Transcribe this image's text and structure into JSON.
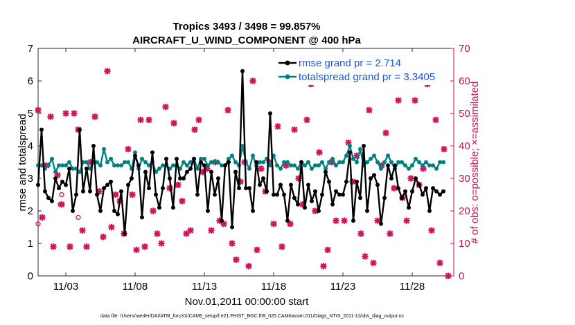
{
  "chart_data": {
    "type": "line",
    "title": "Tropics 3493 / 3498 = 99.857%",
    "subtitle": "AIRCRAFT_U_WIND_COMPONENT @ 400 hPa",
    "xlabel": "Nov.01,2011 00:00:00 start",
    "ylabel_left": "rmse and totalspread",
    "ylabel_right": "# of obs: o=possible; ×=assimilated",
    "footer": "data file: /Users/raeder/DAI/ATM_forcXX/CAM6_setup/f.e21.FHIST_BGC.f09_025.CAM6assim.011/Diags_NTrS_2011-11/obs_diag_output.nc",
    "xlim": [
      1,
      31
    ],
    "ylim_left": [
      0,
      7
    ],
    "ylim_right": [
      0,
      70
    ],
    "xticks": [
      3,
      8,
      13,
      18,
      23,
      28
    ],
    "xtick_labels": [
      "11/03",
      "11/08",
      "11/13",
      "11/18",
      "11/23",
      "11/28"
    ],
    "yticks_left": [
      "0",
      "1",
      "2",
      "3",
      "4",
      "5",
      "6",
      "7"
    ],
    "yticks_right": [
      "0",
      "10",
      "20",
      "30",
      "40",
      "50",
      "60",
      "70"
    ],
    "legend": [
      {
        "name": "rmse grand pr = 2.714",
        "color": "#000000"
      },
      {
        "name": "totalspread grand pr = 3.3405",
        "color": "#008080"
      }
    ],
    "legend_position": "top-right",
    "colors": {
      "rmse": "#000000",
      "spread": "#008080",
      "obs": "#d4145a"
    },
    "rmse_x": [
      1.0,
      1.25,
      1.5,
      1.75,
      2.0,
      2.25,
      2.5,
      2.75,
      3.0,
      3.25,
      3.5,
      3.75,
      4.0,
      4.25,
      4.5,
      4.75,
      5.0,
      5.25,
      5.5,
      5.75,
      6.0,
      6.25,
      6.5,
      6.75,
      7.0,
      7.25,
      7.5,
      7.75,
      8.0,
      8.25,
      8.5,
      8.75,
      9.0,
      9.25,
      9.5,
      9.75,
      10.0,
      10.25,
      10.5,
      10.75,
      11.0,
      11.25,
      11.5,
      11.75,
      12.0,
      12.25,
      12.5,
      12.75,
      13.0,
      13.25,
      13.5,
      13.75,
      14.0,
      14.25,
      14.5,
      14.75,
      15.0,
      15.25,
      15.5,
      15.75,
      16.0,
      16.25,
      16.5,
      16.75,
      17.0,
      17.25,
      17.5,
      17.75,
      18.0,
      18.25,
      18.5,
      18.75,
      19.0,
      19.25,
      19.5,
      19.75,
      20.0,
      20.25,
      20.5,
      20.75,
      21.0,
      21.25,
      21.5,
      21.75,
      22.0,
      22.25,
      22.5,
      22.75,
      23.0,
      23.25,
      23.5,
      23.75,
      24.0,
      24.25,
      24.5,
      24.75,
      25.0,
      25.25,
      25.5,
      25.75,
      26.0,
      26.25,
      26.5,
      26.75,
      27.0,
      27.25,
      27.5,
      27.75,
      28.0,
      28.25,
      28.5,
      28.75,
      29.0,
      29.25,
      29.5,
      29.75,
      30.0,
      30.25,
      30.5
    ],
    "rmse": [
      2.8,
      4.5,
      2.6,
      2.4,
      2.3,
      3.0,
      2.7,
      2.9,
      2.8,
      3.3,
      2.0,
      2.5,
      4.5,
      2.6,
      3.3,
      2.6,
      4.0,
      2.5,
      2.0,
      2.7,
      2.8,
      2.9,
      2.0,
      1.9,
      2.6,
      1.3,
      2.8,
      3.0,
      3.7,
      3.4,
      1.8,
      3.2,
      2.7,
      3.8,
      2.5,
      2.1,
      2.7,
      3.6,
      3.0,
      2.1,
      3.6,
      3.0,
      3.0,
      3.2,
      3.3,
      3.6,
      2.5,
      3.5,
      3.4,
      2.0,
      3.2,
      2.5,
      3.0,
      1.7,
      3.4,
      3.5,
      1.5,
      3.2,
      2.7,
      6.3,
      2.7,
      2.7,
      2.0,
      3.5,
      2.8,
      3.0,
      2.6,
      5.0,
      2.5,
      2.5,
      2.8,
      2.5,
      1.7,
      2.8,
      2.4,
      2.2,
      3.5,
      2.1,
      2.8,
      2.3,
      2.6,
      2.0,
      2.5,
      3.2,
      2.9,
      2.2,
      2.6,
      2.5,
      2.5,
      2.9,
      3.8,
      1.7,
      2.9,
      2.4,
      4.0,
      2.0,
      3.0,
      3.1,
      2.8,
      1.6,
      2.4,
      3.4,
      3.0,
      3.4,
      2.7,
      2.4,
      2.6,
      2.1,
      2.6,
      3.0,
      2.8,
      2.5,
      2.7,
      2.0,
      2.7,
      2.6,
      2.5,
      2.6
    ],
    "spread_x": [
      1.0,
      1.25,
      1.5,
      1.75,
      2.0,
      2.25,
      2.5,
      2.75,
      3.0,
      3.25,
      3.5,
      3.75,
      4.0,
      4.25,
      4.5,
      4.75,
      5.0,
      5.25,
      5.5,
      5.75,
      6.0,
      6.25,
      6.5,
      6.75,
      7.0,
      7.25,
      7.5,
      7.75,
      8.0,
      8.25,
      8.5,
      8.75,
      9.0,
      9.25,
      9.5,
      9.75,
      10.0,
      10.25,
      10.5,
      10.75,
      11.0,
      11.25,
      11.5,
      11.75,
      12.0,
      12.25,
      12.5,
      12.75,
      13.0,
      13.25,
      13.5,
      13.75,
      14.0,
      14.25,
      14.5,
      14.75,
      15.0,
      15.25,
      15.5,
      15.75,
      16.0,
      16.25,
      16.5,
      16.75,
      17.0,
      17.25,
      17.5,
      17.75,
      18.0,
      18.25,
      18.5,
      18.75,
      19.0,
      19.25,
      19.5,
      19.75,
      20.0,
      20.25,
      20.5,
      20.75,
      21.0,
      21.25,
      21.5,
      21.75,
      22.0,
      22.25,
      22.5,
      22.75,
      23.0,
      23.25,
      23.5,
      23.75,
      24.0,
      24.25,
      24.5,
      24.75,
      25.0,
      25.25,
      25.5,
      25.75,
      26.0,
      26.25,
      26.5,
      26.75,
      27.0,
      27.25,
      27.5,
      27.75,
      28.0,
      28.25,
      28.5,
      28.75,
      29.0,
      29.25,
      29.5,
      29.75,
      30.0,
      30.25,
      30.5
    ],
    "spread": [
      3.4,
      3.4,
      3.3,
      3.4,
      3.6,
      3.2,
      3.4,
      3.4,
      3.4,
      3.5,
      3.3,
      3.3,
      3.2,
      3.5,
      3.5,
      3.3,
      3.5,
      3.5,
      3.4,
      3.9,
      3.5,
      3.6,
      3.4,
      3.4,
      3.4,
      3.5,
      3.5,
      3.3,
      3.8,
      3.3,
      3.6,
      3.5,
      3.4,
      3.5,
      3.2,
      3.3,
      3.4,
      3.4,
      3.3,
      3.4,
      3.4,
      3.3,
      3.5,
      3.4,
      3.5,
      3.6,
      3.3,
      3.6,
      3.6,
      3.4,
      3.5,
      3.5,
      3.5,
      3.4,
      3.4,
      3.6,
      3.7,
      3.5,
      3.4,
      4.0,
      3.5,
      3.3,
      3.7,
      3.4,
      3.5,
      3.5,
      3.6,
      3.4,
      3.7,
      3.4,
      3.3,
      3.5,
      3.5,
      3.4,
      3.4,
      3.3,
      3.5,
      3.4,
      3.5,
      3.3,
      3.4,
      3.4,
      3.5,
      3.3,
      3.5,
      3.6,
      3.4,
      3.5,
      3.5,
      3.7,
      4.0,
      3.6,
      3.5,
      3.9,
      3.4,
      3.5,
      3.6,
      3.7,
      3.5,
      3.3,
      3.5,
      3.7,
      3.5,
      3.3,
      3.5,
      3.5,
      3.4,
      3.3,
      3.4,
      3.6,
      3.5,
      3.4,
      3.5,
      3.4,
      3.4,
      3.3,
      3.5,
      3.5
    ],
    "obs_assimilated_x": [
      1.0,
      1.3,
      1.6,
      1.9,
      2.1,
      2.4,
      2.7,
      3.0,
      3.3,
      3.6,
      3.9,
      4.2,
      4.5,
      4.8,
      5.1,
      5.4,
      5.7,
      6.0,
      6.3,
      6.6,
      6.9,
      7.2,
      7.5,
      7.8,
      8.1,
      8.4,
      8.7,
      9.0,
      9.3,
      9.6,
      9.9,
      10.2,
      10.5,
      10.8,
      11.1,
      11.4,
      11.7,
      12.0,
      12.3,
      12.6,
      12.9,
      13.2,
      13.5,
      13.8,
      14.1,
      14.4,
      14.7,
      15.0,
      15.3,
      15.6,
      15.9,
      16.2,
      16.5,
      16.8,
      17.1,
      17.4,
      17.7,
      18.0,
      18.3,
      18.6,
      18.9,
      19.2,
      19.5,
      19.8,
      20.1,
      20.4,
      20.7,
      21.0,
      21.3,
      21.6,
      21.9,
      22.2,
      22.5,
      22.8,
      23.1,
      23.4,
      23.7,
      24.0,
      24.3,
      24.6,
      24.9,
      25.2,
      25.5,
      25.8,
      26.1,
      26.4,
      26.7,
      27.0,
      27.3,
      27.6,
      27.9,
      28.2,
      28.5,
      28.8,
      29.1,
      29.4,
      29.7,
      30.0,
      30.3,
      30.6
    ],
    "obs_assimilated": [
      51,
      18,
      34,
      49,
      9,
      31,
      22,
      50,
      9,
      50,
      45,
      14,
      9,
      35,
      49,
      26,
      12,
      63,
      15,
      25,
      23,
      13,
      39,
      25,
      8,
      48,
      9,
      48,
      20,
      13,
      10,
      52,
      27,
      47,
      28,
      23,
      13,
      14,
      45,
      48,
      32,
      33,
      14,
      35,
      17,
      16,
      51,
      10,
      5,
      29,
      35,
      3,
      60,
      8,
      33,
      26,
      35,
      16,
      46,
      9,
      34,
      16,
      45,
      30,
      22,
      48,
      59,
      20,
      38,
      3,
      8,
      35,
      17,
      61,
      17,
      41,
      29,
      37,
      13,
      6,
      51,
      4,
      17,
      34,
      44,
      13,
      27,
      54,
      24,
      17,
      30,
      54,
      28,
      33,
      59,
      14,
      48,
      4,
      39,
      0
    ],
    "obs_possible_x": [
      1.0,
      2.6,
      2.7,
      3.9
    ],
    "obs_possible": [
      16,
      22,
      25,
      18
    ]
  }
}
